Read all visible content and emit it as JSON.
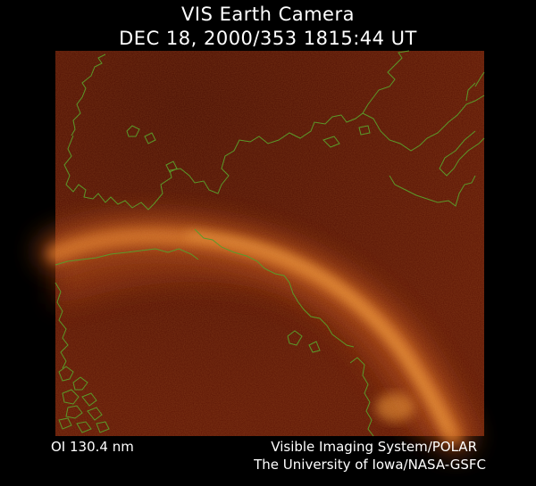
{
  "header": {
    "title_line_1": "VIS Earth Camera",
    "title_line_2": "DEC 18, 2000/353 1815:44 UT"
  },
  "image": {
    "subject": "auroral oval over continental coastlines",
    "colors": {
      "background_field": "#5a1204",
      "aurora_core": "#f0a040",
      "coastline": "#5a9a2a"
    }
  },
  "footer": {
    "wavelength": "OI  130.4 nm",
    "credit_line_1": "Visible Imaging System/POLAR",
    "credit_line_2": "The University of Iowa/NASA-GSFC"
  }
}
